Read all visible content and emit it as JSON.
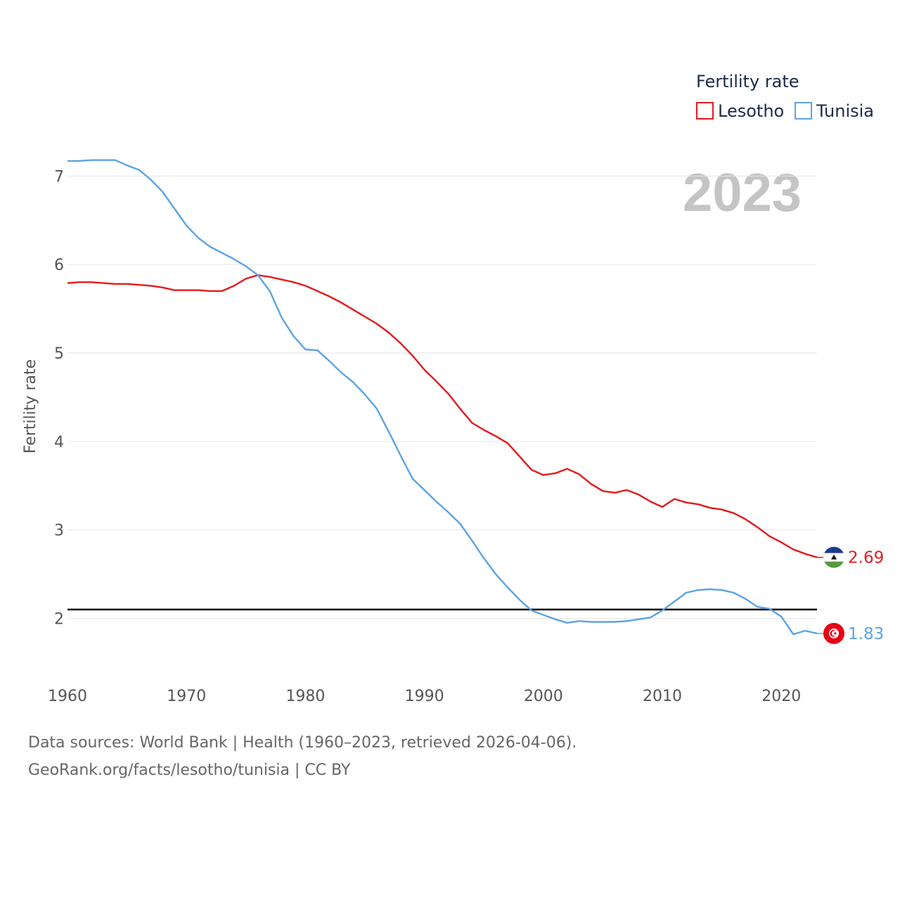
{
  "chart_data": {
    "type": "line",
    "title": "Fertility rate",
    "year_label": "2023",
    "xlabel": "",
    "ylabel": "Fertility rate",
    "xlim": [
      1960,
      2023
    ],
    "ylim": [
      1.4,
      7.4
    ],
    "x_ticks": [
      1960,
      1970,
      1980,
      1990,
      2000,
      2010,
      2020
    ],
    "y_ticks": [
      2,
      3,
      4,
      5,
      6,
      7
    ],
    "reference_line": 2.1,
    "legend": {
      "title": "Fertility rate",
      "position": "top-right"
    },
    "x": [
      1960,
      1961,
      1962,
      1963,
      1964,
      1965,
      1966,
      1967,
      1968,
      1969,
      1970,
      1971,
      1972,
      1973,
      1974,
      1975,
      1976,
      1977,
      1978,
      1979,
      1980,
      1981,
      1982,
      1983,
      1984,
      1985,
      1986,
      1987,
      1988,
      1989,
      1990,
      1991,
      1992,
      1993,
      1994,
      1995,
      1996,
      1997,
      1998,
      1999,
      2000,
      2001,
      2002,
      2003,
      2004,
      2005,
      2006,
      2007,
      2008,
      2009,
      2010,
      2011,
      2012,
      2013,
      2014,
      2015,
      2016,
      2017,
      2018,
      2019,
      2020,
      2021,
      2022,
      2023
    ],
    "series": [
      {
        "name": "Lesotho",
        "color": "#e41a1c",
        "end_label": "2.69",
        "values": [
          5.79,
          5.8,
          5.8,
          5.79,
          5.78,
          5.78,
          5.77,
          5.76,
          5.74,
          5.71,
          5.71,
          5.71,
          5.7,
          5.7,
          5.76,
          5.84,
          5.88,
          5.86,
          5.83,
          5.8,
          5.76,
          5.7,
          5.64,
          5.57,
          5.49,
          5.41,
          5.33,
          5.23,
          5.11,
          4.97,
          4.81,
          4.68,
          4.54,
          4.37,
          4.21,
          4.13,
          4.06,
          3.98,
          3.83,
          3.68,
          3.62,
          3.64,
          3.69,
          3.63,
          3.52,
          3.44,
          3.42,
          3.45,
          3.4,
          3.32,
          3.26,
          3.35,
          3.31,
          3.29,
          3.25,
          3.23,
          3.19,
          3.12,
          3.03,
          2.93,
          2.86,
          2.78,
          2.73,
          2.69
        ]
      },
      {
        "name": "Tunisia",
        "color": "#5ba3e6",
        "end_label": "1.83",
        "values": [
          7.17,
          7.17,
          7.18,
          7.18,
          7.18,
          7.12,
          7.07,
          6.96,
          6.82,
          6.63,
          6.44,
          6.3,
          6.2,
          6.13,
          6.06,
          5.98,
          5.88,
          5.7,
          5.4,
          5.19,
          5.04,
          5.03,
          4.91,
          4.78,
          4.67,
          4.53,
          4.37,
          4.11,
          3.84,
          3.58,
          3.45,
          3.32,
          3.2,
          3.07,
          2.88,
          2.68,
          2.5,
          2.35,
          2.21,
          2.09,
          2.04,
          1.99,
          1.95,
          1.97,
          1.96,
          1.96,
          1.96,
          1.97,
          1.99,
          2.01,
          2.09,
          2.19,
          2.29,
          2.32,
          2.33,
          2.32,
          2.29,
          2.22,
          2.13,
          2.11,
          2.02,
          1.82,
          1.86,
          1.83
        ]
      }
    ]
  },
  "source": {
    "line1": "Data sources: World Bank | Health (1960–2023, retrieved 2026-04-06).",
    "line2": "GeoRank.org/facts/lesotho/tunisia | CC BY"
  },
  "icons": {
    "lesotho": "lesotho-flag-icon",
    "tunisia": "tunisia-flag-icon"
  }
}
